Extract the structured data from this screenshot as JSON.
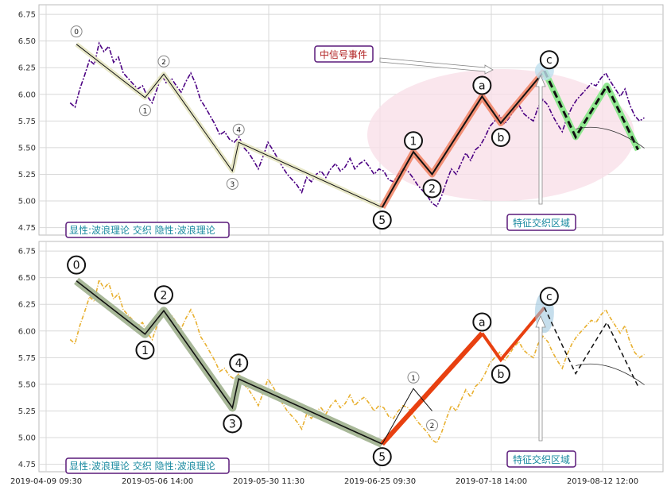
{
  "chart_data": [
    {
      "type": "line",
      "title": "",
      "ylim": [
        4.68,
        6.84
      ],
      "yticks": [
        "4.75",
        "5.00",
        "5.25",
        "5.50",
        "5.75",
        "6.00",
        "6.25",
        "6.50",
        "6.75"
      ],
      "grid": true,
      "colors": {
        "price": "#4b0082",
        "wave": "#111111",
        "shade": "#e8e8c8",
        "impulse": "#f08060",
        "corr": "#90e890",
        "ellipse": "#f9e0e8"
      },
      "series": [
        {
          "role": "price",
          "values": [
            5.92,
            5.88,
            6.05,
            6.18,
            6.32,
            6.28,
            6.48,
            6.4,
            6.45,
            6.3,
            6.35,
            6.2,
            6.15,
            6.1,
            6.05,
            6.08,
            5.98,
            5.92,
            6.05,
            6.18,
            6.1,
            6.15,
            6.08,
            6.02,
            6.12,
            6.2,
            6.1,
            5.95,
            5.88,
            5.8,
            5.72,
            5.62,
            5.65,
            5.58,
            5.55,
            5.6,
            5.5,
            5.45,
            5.38,
            5.3,
            5.42,
            5.55,
            5.48,
            5.4,
            5.32,
            5.25,
            5.2,
            5.15,
            5.08,
            5.22,
            5.18,
            5.25,
            5.28,
            5.22,
            5.3,
            5.35,
            5.28,
            5.32,
            5.4,
            5.3,
            5.35,
            5.38,
            5.32,
            5.25,
            5.3,
            5.28,
            5.2,
            5.18,
            5.25,
            5.3,
            5.28,
            5.22,
            5.15,
            5.1,
            5.05,
            4.98,
            4.95,
            5.05,
            5.18,
            5.3,
            5.25,
            5.35,
            5.45,
            5.38,
            5.48,
            5.52,
            5.6,
            5.7,
            5.75,
            5.8,
            5.72,
            5.78,
            5.85,
            5.9,
            5.82,
            5.78,
            5.75,
            5.88,
            5.95,
            5.9,
            5.8,
            5.72,
            5.65,
            5.78,
            5.88,
            5.95,
            6.0,
            6.05,
            6.1,
            6.08,
            6.15,
            6.2,
            6.12,
            6.05,
            5.98,
            6.05,
            5.9,
            5.8,
            5.75,
            5.78
          ]
        }
      ],
      "waves": [
        {
          "label": "0",
          "x": 0.06,
          "y": 6.47
        },
        {
          "label": "1",
          "x": 0.17,
          "y": 5.97
        },
        {
          "label": "2",
          "x": 0.2,
          "y": 6.19
        },
        {
          "label": "3",
          "x": 0.31,
          "y": 5.28
        },
        {
          "label": "4",
          "x": 0.32,
          "y": 5.55
        },
        {
          "label": "5",
          "x": 0.55,
          "y": 4.94
        }
      ],
      "wave_b": [
        {
          "label": "0",
          "x": 0.55,
          "y": 4.94
        },
        {
          "label": "1",
          "x": 0.6,
          "y": 5.46
        },
        {
          "label": "2",
          "x": 0.63,
          "y": 5.25
        },
        {
          "label": "a",
          "x": 0.71,
          "y": 5.98
        },
        {
          "label": "b",
          "x": 0.74,
          "y": 5.73
        },
        {
          "label": "c",
          "x": 0.81,
          "y": 6.22
        }
      ],
      "forecast": [
        {
          "x": 0.81,
          "y": 6.22
        },
        {
          "x": 0.86,
          "y": 5.6
        },
        {
          "x": 0.91,
          "y": 6.08
        },
        {
          "x": 0.96,
          "y": 5.48
        }
      ],
      "annotations": {
        "signal": "中信号事件",
        "zone": "特征交织区域",
        "legend": "显性:波浪理论 交织 隐性:波浪理论"
      }
    },
    {
      "type": "line",
      "title": "",
      "ylim": [
        4.68,
        6.84
      ],
      "yticks": [
        "4.75",
        "5.00",
        "5.25",
        "5.50",
        "5.75",
        "6.00",
        "6.25",
        "6.50",
        "6.75"
      ],
      "grid": true,
      "colors": {
        "price": "#e8b030",
        "wave": "#111111",
        "shade": "#a8b898",
        "impulse": "#e84010",
        "corr": "#111111",
        "halo": "#a0c8e0"
      },
      "annotations": {
        "zone": "特征交织区域",
        "legend": "显性:波浪理论 交织 隐性:波浪理论"
      }
    }
  ],
  "xticks": [
    "2019-04-09 09:30",
    "2019-05-06 14:00",
    "2019-05-30 11:30",
    "2019-06-25 09:30",
    "2019-07-18 14:00",
    "2019-08-12 12:00"
  ]
}
